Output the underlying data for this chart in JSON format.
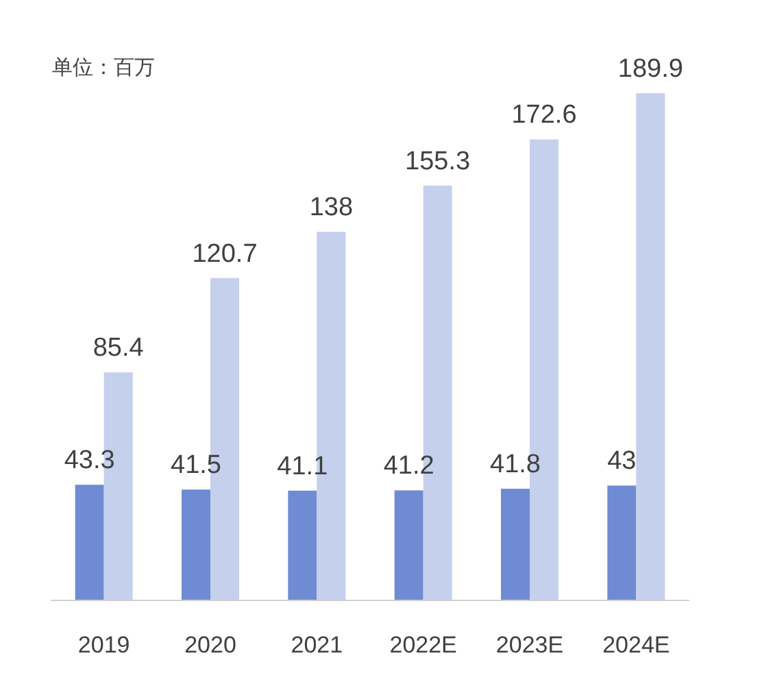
{
  "chart_data": {
    "type": "bar",
    "categories": [
      "2019",
      "2020",
      "2021",
      "2022E",
      "2023E",
      "2024E"
    ],
    "series": [
      {
        "color": "#6f8bd3",
        "values": [
          43.3,
          41.5,
          41.1,
          41.2,
          41.8,
          43
        ]
      },
      {
        "color": "#c5d0ed",
        "values": [
          85.4,
          120.7,
          138,
          155.3,
          172.6,
          189.9
        ]
      }
    ],
    "data_labels": true,
    "annotations": [
      "单位：百万"
    ]
  }
}
